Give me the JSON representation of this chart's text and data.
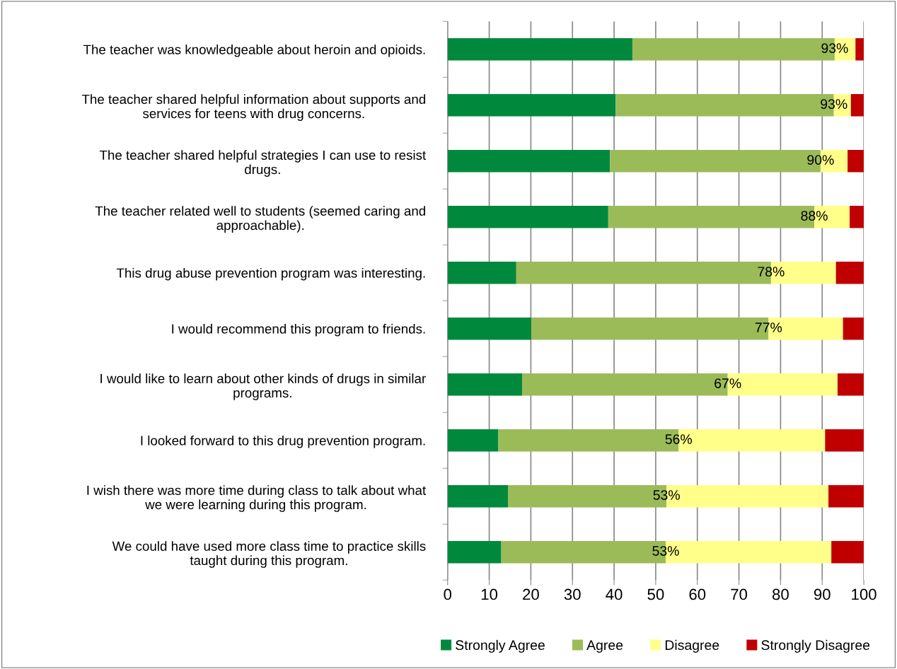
{
  "chart_data": {
    "type": "bar",
    "orientation": "horizontal",
    "stacked": true,
    "categories": [
      "The teacher was knowledgeable about heroin and opioids.",
      "The teacher shared helpful information about supports and\nservices for teens with drug concerns.",
      "The teacher shared helpful strategies I can use to resist\ndrugs.",
      "The teacher related well to students (seemed caring and\napproachable).",
      "This drug abuse prevention program was interesting.",
      "I would recommend this program to friends.",
      "I would like to learn about other kinds of drugs in similar\nprograms.",
      "I looked forward to this drug prevention program.",
      "I wish there was more time during class to talk about what\nwe were learning during this program.",
      "We could have used more class time to practice skills\ntaught during this program."
    ],
    "series": [
      {
        "name": "Strongly Agree",
        "color": "#00893d",
        "values": [
          44.4,
          40.4,
          39.0,
          38.6,
          16.5,
          20.1,
          17.9,
          12.2,
          14.5,
          12.9
        ]
      },
      {
        "name": "Agree",
        "color": "#9bbb59",
        "values": [
          48.6,
          52.4,
          50.6,
          49.5,
          61.2,
          57.0,
          49.4,
          43.3,
          38.1,
          39.5
        ]
      },
      {
        "name": "Disagree",
        "color": "#ffff8a",
        "values": [
          5.0,
          4.1,
          6.5,
          8.5,
          15.6,
          17.9,
          26.4,
          35.2,
          38.9,
          39.8
        ]
      },
      {
        "name": "Strongly Disagree",
        "color": "#c00000",
        "values": [
          2.0,
          3.1,
          3.9,
          3.4,
          6.7,
          5.0,
          6.3,
          9.3,
          8.5,
          7.8
        ]
      }
    ],
    "xlim": [
      0,
      100
    ],
    "xticks": [
      0,
      10,
      20,
      30,
      40,
      50,
      60,
      70,
      80,
      90,
      100
    ],
    "grid": "x",
    "legend": "bottom",
    "annotations": [
      {
        "text": "93%",
        "x": 93.0,
        "y": "The teacher was knowledgeable about heroin and opioids."
      },
      {
        "text": "93%",
        "x": 92.8,
        "y": "The teacher shared helpful information about supports and\nservices for teens with drug concerns."
      },
      {
        "text": "90%",
        "x": 89.6,
        "y": "The teacher shared helpful strategies I can use to resist\ndrugs."
      },
      {
        "text": "88%",
        "x": 88.1,
        "y": "The teacher related well to students (seemed caring and\napproachable)."
      },
      {
        "text": "78%",
        "x": 77.7,
        "y": "This drug abuse prevention program was interesting."
      },
      {
        "text": "77%",
        "x": 77.1,
        "y": "I would recommend this program to friends."
      },
      {
        "text": "67%",
        "x": 67.3,
        "y": "I would like to learn about other kinds of drugs in similar\nprograms."
      },
      {
        "text": "56%",
        "x": 55.5,
        "y": "I looked forward to this drug prevention program."
      },
      {
        "text": "53%",
        "x": 52.6,
        "y": "I wish there was more time during class to talk about what\nwe were learning during this program."
      },
      {
        "text": "53%",
        "x": 52.4,
        "y": "We could have used more class time to practice skills\ntaught during this program."
      }
    ]
  }
}
